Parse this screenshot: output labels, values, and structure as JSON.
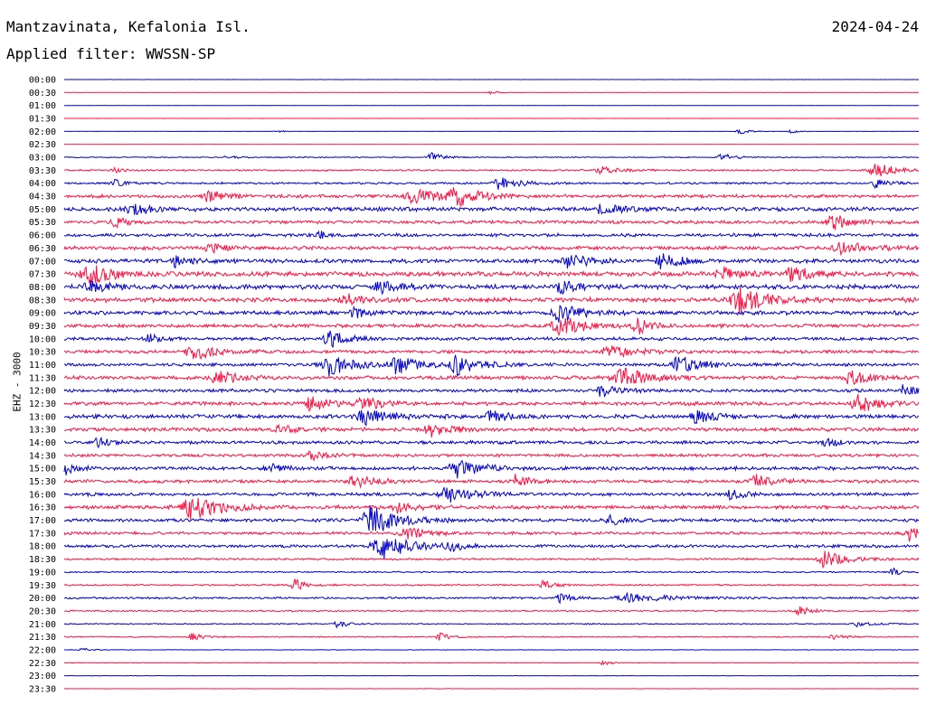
{
  "header": {
    "station": "Mantzavinata, Kefalonia Isl.",
    "date": "2024-04-24",
    "filter": "Applied filter: WWSSN-SP"
  },
  "colors": {
    "series_a": "#0000cc",
    "series_b": "#ff1040"
  },
  "chart_data": {
    "type": "line",
    "title": "",
    "ylabel": "EHZ - 3000",
    "xlabel": "",
    "grid": false,
    "legend": "none",
    "traces": [
      {
        "label": "00:00",
        "color": "#0000cc",
        "noise": 0.12,
        "events": []
      },
      {
        "label": "00:30",
        "color": "#ff1040",
        "noise": 0.08,
        "events": [
          [
            0.5,
            2.5,
            0.004
          ]
        ]
      },
      {
        "label": "01:00",
        "color": "#0000cc",
        "noise": 0.1,
        "events": []
      },
      {
        "label": "01:30",
        "color": "#ff1040",
        "noise": 0.1,
        "events": []
      },
      {
        "label": "02:00",
        "color": "#0000cc",
        "noise": 0.12,
        "events": [
          [
            0.79,
            3,
            0.006
          ],
          [
            0.85,
            2,
            0.004
          ],
          [
            0.25,
            1.5,
            0.004
          ]
        ]
      },
      {
        "label": "02:30",
        "color": "#ff1040",
        "noise": 0.12,
        "events": []
      },
      {
        "label": "03:00",
        "color": "#0000cc",
        "noise": 0.6,
        "events": [
          [
            0.43,
            5,
            0.006
          ],
          [
            0.77,
            5,
            0.006
          ],
          [
            0.19,
            3,
            0.004
          ]
        ]
      },
      {
        "label": "03:30",
        "color": "#ff1040",
        "noise": 1.0,
        "events": [
          [
            0.63,
            4,
            0.01
          ],
          [
            0.95,
            8,
            0.012
          ],
          [
            0.06,
            3,
            0.004
          ]
        ]
      },
      {
        "label": "04:00",
        "color": "#0000cc",
        "noise": 1.3,
        "events": [
          [
            0.51,
            7,
            0.01
          ],
          [
            0.06,
            4,
            0.006
          ],
          [
            0.95,
            5,
            0.006
          ]
        ]
      },
      {
        "label": "04:30",
        "color": "#ff1040",
        "noise": 2.0,
        "events": [
          [
            0.41,
            9,
            0.012
          ],
          [
            0.46,
            10,
            0.012
          ],
          [
            0.17,
            6,
            0.01
          ]
        ]
      },
      {
        "label": "05:00",
        "color": "#0000cc",
        "noise": 2.5,
        "events": [
          [
            0.63,
            6,
            0.01
          ],
          [
            0.08,
            6,
            0.01
          ]
        ]
      },
      {
        "label": "05:30",
        "color": "#ff1040",
        "noise": 2.0,
        "events": [
          [
            0.9,
            8,
            0.01
          ],
          [
            0.06,
            5,
            0.008
          ]
        ]
      },
      {
        "label": "06:00",
        "color": "#0000cc",
        "noise": 2.0,
        "events": [
          [
            0.3,
            4,
            0.006
          ]
        ]
      },
      {
        "label": "06:30",
        "color": "#ff1040",
        "noise": 2.2,
        "events": [
          [
            0.91,
            7,
            0.012
          ],
          [
            0.17,
            5,
            0.008
          ]
        ]
      },
      {
        "label": "07:00",
        "color": "#0000cc",
        "noise": 2.5,
        "events": [
          [
            0.7,
            8,
            0.01
          ],
          [
            0.59,
            7,
            0.01
          ],
          [
            0.13,
            6,
            0.006
          ]
        ]
      },
      {
        "label": "07:30",
        "color": "#ff1040",
        "noise": 2.8,
        "events": [
          [
            0.03,
            12,
            0.012
          ],
          [
            0.85,
            8,
            0.01
          ],
          [
            0.77,
            7,
            0.01
          ]
        ]
      },
      {
        "label": "08:00",
        "color": "#0000cc",
        "noise": 2.8,
        "events": [
          [
            0.37,
            6,
            0.01
          ],
          [
            0.58,
            6,
            0.01
          ],
          [
            0.03,
            6,
            0.01
          ]
        ]
      },
      {
        "label": "08:30",
        "color": "#ff1040",
        "noise": 2.8,
        "events": [
          [
            0.79,
            16,
            0.012
          ],
          [
            0.33,
            6,
            0.008
          ]
        ]
      },
      {
        "label": "09:00",
        "color": "#0000cc",
        "noise": 2.5,
        "events": [
          [
            0.58,
            9,
            0.012
          ],
          [
            0.34,
            6,
            0.006
          ]
        ]
      },
      {
        "label": "09:30",
        "color": "#ff1040",
        "noise": 2.2,
        "events": [
          [
            0.58,
            11,
            0.012
          ],
          [
            0.67,
            10,
            0.006
          ]
        ]
      },
      {
        "label": "10:00",
        "color": "#0000cc",
        "noise": 2.0,
        "events": [
          [
            0.31,
            10,
            0.008
          ],
          [
            0.1,
            6,
            0.006
          ]
        ]
      },
      {
        "label": "10:30",
        "color": "#ff1040",
        "noise": 2.0,
        "events": [
          [
            0.15,
            10,
            0.01
          ],
          [
            0.64,
            7,
            0.012
          ]
        ]
      },
      {
        "label": "11:00",
        "color": "#0000cc",
        "noise": 2.0,
        "events": [
          [
            0.31,
            12,
            0.012
          ],
          [
            0.39,
            10,
            0.01
          ],
          [
            0.46,
            11,
            0.01
          ],
          [
            0.72,
            11,
            0.01
          ]
        ]
      },
      {
        "label": "11:30",
        "color": "#ff1040",
        "noise": 2.2,
        "events": [
          [
            0.65,
            11,
            0.014
          ],
          [
            0.18,
            8,
            0.01
          ],
          [
            0.92,
            8,
            0.01
          ]
        ]
      },
      {
        "label": "12:00",
        "color": "#0000cc",
        "noise": 2.0,
        "events": [
          [
            0.63,
            8,
            0.008
          ],
          [
            0.98,
            8,
            0.006
          ]
        ]
      },
      {
        "label": "12:30",
        "color": "#ff1040",
        "noise": 2.2,
        "events": [
          [
            0.29,
            8,
            0.01
          ],
          [
            0.93,
            11,
            0.01
          ],
          [
            0.35,
            7,
            0.01
          ]
        ]
      },
      {
        "label": "13:00",
        "color": "#0000cc",
        "noise": 2.5,
        "events": [
          [
            0.35,
            9,
            0.012
          ],
          [
            0.74,
            8,
            0.008
          ],
          [
            0.5,
            6,
            0.01
          ]
        ]
      },
      {
        "label": "13:30",
        "color": "#ff1040",
        "noise": 2.2,
        "events": [
          [
            0.43,
            7,
            0.01
          ],
          [
            0.25,
            5,
            0.008
          ]
        ]
      },
      {
        "label": "14:00",
        "color": "#0000cc",
        "noise": 2.0,
        "events": [
          [
            0.04,
            5,
            0.006
          ],
          [
            0.89,
            5,
            0.006
          ]
        ]
      },
      {
        "label": "14:30",
        "color": "#ff1040",
        "noise": 1.8,
        "events": [
          [
            0.29,
            5,
            0.008
          ]
        ]
      },
      {
        "label": "15:00",
        "color": "#0000cc",
        "noise": 2.2,
        "events": [
          [
            0.46,
            10,
            0.012
          ],
          [
            0.0,
            8,
            0.006
          ],
          [
            0.24,
            6,
            0.006
          ]
        ]
      },
      {
        "label": "15:30",
        "color": "#ff1040",
        "noise": 2.0,
        "events": [
          [
            0.53,
            9,
            0.006
          ],
          [
            0.34,
            7,
            0.01
          ],
          [
            0.81,
            7,
            0.008
          ]
        ]
      },
      {
        "label": "16:00",
        "color": "#0000cc",
        "noise": 2.0,
        "events": [
          [
            0.45,
            9,
            0.012
          ],
          [
            0.78,
            5,
            0.008
          ]
        ]
      },
      {
        "label": "16:30",
        "color": "#ff1040",
        "noise": 2.2,
        "events": [
          [
            0.15,
            14,
            0.014
          ],
          [
            0.39,
            6,
            0.008
          ]
        ]
      },
      {
        "label": "17:00",
        "color": "#0000cc",
        "noise": 2.0,
        "events": [
          [
            0.36,
            16,
            0.014
          ],
          [
            0.64,
            6,
            0.006
          ]
        ]
      },
      {
        "label": "17:30",
        "color": "#ff1040",
        "noise": 1.8,
        "events": [
          [
            0.4,
            7,
            0.01
          ],
          [
            0.99,
            8,
            0.008
          ]
        ]
      },
      {
        "label": "18:00",
        "color": "#0000cc",
        "noise": 1.8,
        "events": [
          [
            0.37,
            16,
            0.014
          ],
          [
            0.45,
            6,
            0.006
          ]
        ]
      },
      {
        "label": "18:30",
        "color": "#ff1040",
        "noise": 1.2,
        "events": [
          [
            0.89,
            10,
            0.01
          ]
        ]
      },
      {
        "label": "19:00",
        "color": "#0000cc",
        "noise": 0.9,
        "events": [
          [
            0.97,
            5,
            0.004
          ]
        ]
      },
      {
        "label": "19:30",
        "color": "#ff1040",
        "noise": 1.0,
        "events": [
          [
            0.27,
            6,
            0.006
          ],
          [
            0.56,
            5,
            0.006
          ]
        ]
      },
      {
        "label": "20:00",
        "color": "#0000cc",
        "noise": 1.2,
        "events": [
          [
            0.66,
            5,
            0.02
          ],
          [
            0.58,
            5,
            0.006
          ]
        ]
      },
      {
        "label": "20:30",
        "color": "#ff1040",
        "noise": 0.9,
        "events": [
          [
            0.86,
            5,
            0.006
          ]
        ]
      },
      {
        "label": "21:00",
        "color": "#0000cc",
        "noise": 0.7,
        "events": [
          [
            0.32,
            4,
            0.006
          ],
          [
            0.93,
            4,
            0.008
          ]
        ]
      },
      {
        "label": "21:30",
        "color": "#ff1040",
        "noise": 0.7,
        "events": [
          [
            0.15,
            4,
            0.006
          ],
          [
            0.44,
            4,
            0.006
          ],
          [
            0.9,
            3,
            0.006
          ]
        ]
      },
      {
        "label": "22:00",
        "color": "#0000cc",
        "noise": 0.3,
        "events": [
          [
            0.02,
            3,
            0.004
          ]
        ]
      },
      {
        "label": "22:30",
        "color": "#ff1040",
        "noise": 0.3,
        "events": [
          [
            0.63,
            3,
            0.004
          ]
        ]
      },
      {
        "label": "23:00",
        "color": "#0000cc",
        "noise": 0.2,
        "events": []
      },
      {
        "label": "23:30",
        "color": "#ff1040",
        "noise": 0.2,
        "events": []
      }
    ]
  }
}
